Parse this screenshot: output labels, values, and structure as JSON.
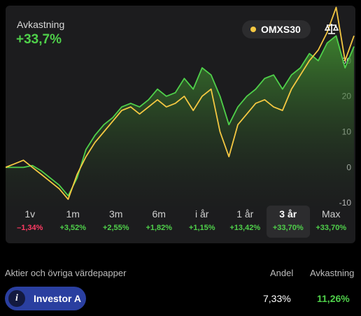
{
  "header": {
    "title": "Avkastning",
    "value": "+33,7%",
    "legend": "OMXS30"
  },
  "chart_data": {
    "type": "line",
    "ylim": [
      -13.5,
      45.5
    ],
    "yticks": [
      -10,
      0,
      10,
      20,
      30
    ],
    "series": [
      {
        "color": "#4fd04a",
        "values": [
          0,
          0,
          0,
          0.5,
          -1,
          -3,
          -5,
          -8,
          -3,
          5,
          9,
          12,
          14,
          17,
          18,
          17,
          19,
          22,
          20,
          21,
          25,
          22,
          28,
          26,
          20,
          12,
          17,
          20,
          22,
          25,
          26,
          22,
          26,
          28,
          32,
          30,
          35,
          37,
          28,
          34
        ]
      },
      {
        "name": "OMXS30",
        "color": "#f5c842",
        "values": [
          0,
          1,
          2,
          0,
          -2,
          -4,
          -6,
          -9,
          -2,
          3,
          7,
          10,
          13,
          16,
          17,
          15,
          17,
          19,
          17,
          18,
          20,
          16,
          20,
          22,
          10,
          3,
          12,
          15,
          18,
          19,
          17,
          16,
          22,
          26,
          30,
          33,
          38,
          45,
          30,
          37
        ]
      }
    ]
  },
  "periods": [
    {
      "label": "1v",
      "change": "–1,34%"
    },
    {
      "label": "1m",
      "change": "+3,52%"
    },
    {
      "label": "3m",
      "change": "+2,55%"
    },
    {
      "label": "6m",
      "change": "+1,82%"
    },
    {
      "label": "i år",
      "change": "+1,15%"
    },
    {
      "label": "1 år",
      "change": "+13,42%"
    },
    {
      "label": "3 år",
      "change": "+33,70%"
    },
    {
      "label": "Max",
      "change": "+33,70%"
    }
  ],
  "selected_period": 6,
  "table": {
    "headers": [
      "Aktier och övriga värdepapper",
      "Andel",
      "Avkastning"
    ],
    "rows": [
      [
        "i",
        "Investor A",
        "7,33%",
        "11,26%"
      ]
    ]
  }
}
